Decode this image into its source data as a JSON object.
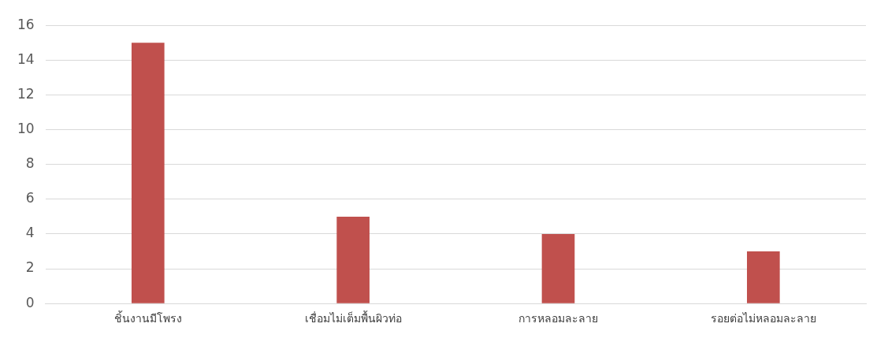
{
  "chart_data": {
    "type": "bar",
    "categories": [
      "ชิ้นงานมีโพรง",
      "เชื่อมไม่เต็มพื้นผิวท่อ",
      "การหลอมละลาย",
      "รอยต่อไม่หลอมละลาย"
    ],
    "values": [
      15,
      5,
      4,
      3
    ],
    "color": "#c0504d",
    "ylim": [
      0,
      16
    ],
    "yticks": [
      0,
      2,
      4,
      6,
      8,
      10,
      12,
      14,
      16
    ],
    "grid": "y",
    "legend": false
  }
}
